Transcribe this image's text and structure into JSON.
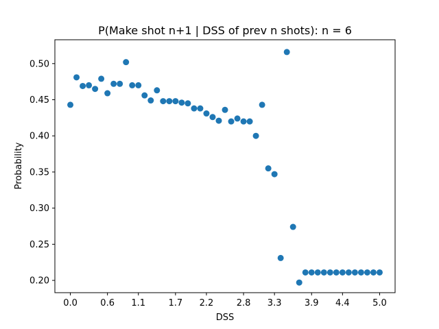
{
  "chart_data": {
    "type": "scatter",
    "title": "P(Make shot n+1 | DSS of prev n shots): n = 6",
    "xlabel": "DSS",
    "ylabel": "Probability",
    "xlim": [
      -0.25,
      5.25
    ],
    "ylim": [
      0.183,
      0.533
    ],
    "x_ticks": [
      0.0,
      0.6,
      1.1,
      1.7,
      2.2,
      2.8,
      3.3,
      3.9,
      4.4,
      5.0
    ],
    "x_tick_labels": [
      "0.0",
      "0.6",
      "1.1",
      "1.7",
      "2.2",
      "2.8",
      "3.3",
      "3.9",
      "4.4",
      "5.0"
    ],
    "y_ticks": [
      0.2,
      0.25,
      0.3,
      0.35,
      0.4,
      0.45,
      0.5
    ],
    "y_tick_labels": [
      "0.20",
      "0.25",
      "0.30",
      "0.35",
      "0.40",
      "0.45",
      "0.50"
    ],
    "grid": false,
    "legend": "none",
    "marker_color": "#1f77b4",
    "series": [
      {
        "x": [
          0.0,
          0.1,
          0.2,
          0.3,
          0.4,
          0.5,
          0.6,
          0.7,
          0.8,
          0.9,
          1.0,
          1.1,
          1.2,
          1.3,
          1.4,
          1.5,
          1.6,
          1.7,
          1.8,
          1.9,
          2.0,
          2.1,
          2.2,
          2.3,
          2.4,
          2.5,
          2.6,
          2.7,
          2.8,
          2.9,
          3.0,
          3.1,
          3.2,
          3.3,
          3.4,
          3.5,
          3.6,
          3.7,
          3.8,
          3.9,
          4.0,
          4.1,
          4.2,
          4.3,
          4.4,
          4.5,
          4.6,
          4.7,
          4.8,
          4.9,
          5.0
        ],
        "y": [
          0.443,
          0.481,
          0.469,
          0.47,
          0.465,
          0.479,
          0.459,
          0.472,
          0.472,
          0.502,
          0.47,
          0.47,
          0.456,
          0.449,
          0.463,
          0.448,
          0.448,
          0.448,
          0.446,
          0.445,
          0.438,
          0.438,
          0.431,
          0.426,
          0.421,
          0.436,
          0.42,
          0.424,
          0.42,
          0.42,
          0.4,
          0.443,
          0.355,
          0.347,
          0.231,
          0.516,
          0.274,
          0.197,
          0.211,
          0.211,
          0.211,
          0.211,
          0.211,
          0.211,
          0.211,
          0.211,
          0.211,
          0.211,
          0.211,
          0.211,
          0.211
        ]
      }
    ]
  }
}
